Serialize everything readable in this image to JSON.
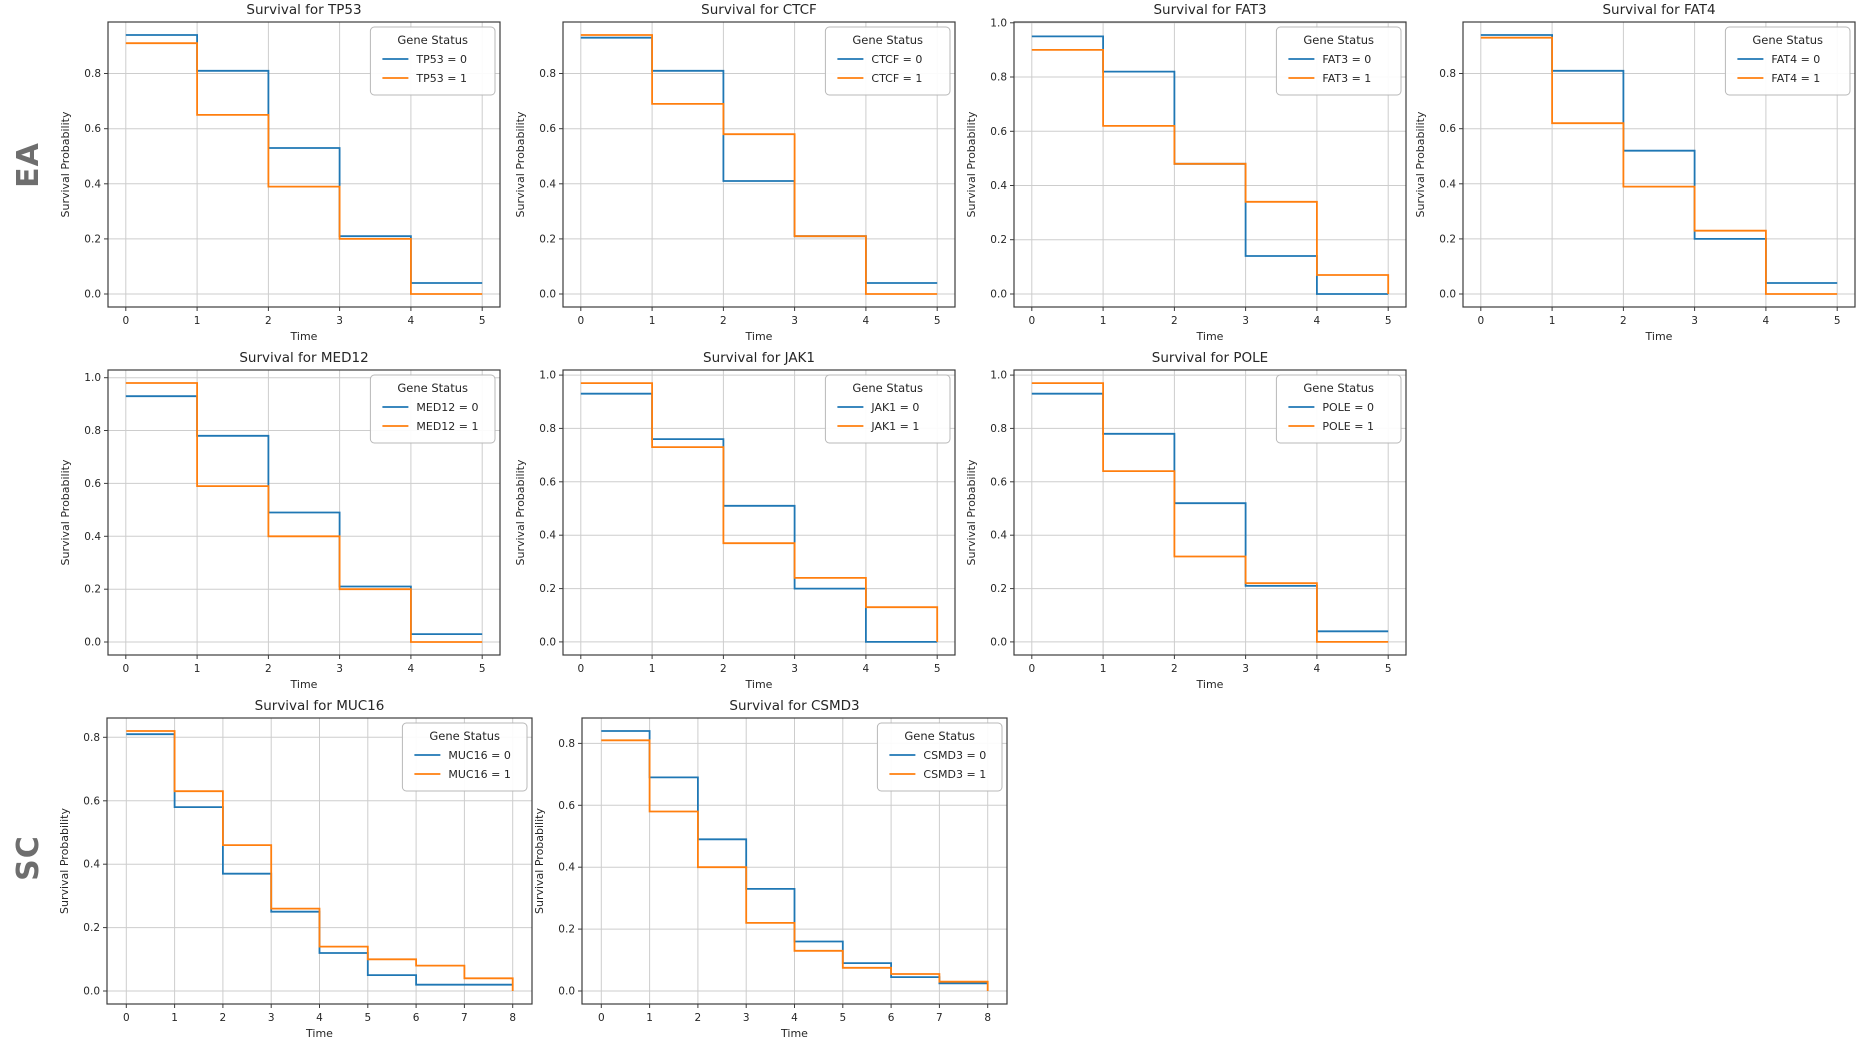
{
  "row_labels": [
    {
      "label": "EA"
    },
    {
      "label": "SC"
    }
  ],
  "colors": {
    "series0": "#1f77b4",
    "series1": "#ff7f0e",
    "grid": "#cdcdcd",
    "spine": "#3c3c3c",
    "text": "#262626",
    "row_label": "#6e6e6e",
    "legend_border": "#b8b8b8"
  },
  "chart_data": [
    {
      "id": "tp53",
      "type": "line",
      "step": true,
      "title": "Survival for TP53",
      "xlabel": "Time",
      "ylabel": "Survival Probability",
      "legend_title": "Gene Status",
      "legend_position": "upper right",
      "grid": true,
      "x": [
        0,
        1,
        2,
        3,
        4,
        5
      ],
      "xticks": [
        0,
        1,
        2,
        3,
        4,
        5
      ],
      "xlim": [
        -0.25,
        5.25
      ],
      "yticks": [
        0.0,
        0.2,
        0.4,
        0.6,
        0.8
      ],
      "ylim": [
        -0.047,
        0.987
      ],
      "series": [
        {
          "name": "TP53 = 0",
          "color": "#1f77b4",
          "values": [
            0.94,
            0.81,
            0.53,
            0.21,
            0.04
          ],
          "end_drop": false
        },
        {
          "name": "TP53 = 1",
          "color": "#ff7f0e",
          "values": [
            0.91,
            0.65,
            0.39,
            0.2,
            0.0
          ],
          "end_drop": false
        }
      ]
    },
    {
      "id": "ctcf",
      "type": "line",
      "step": true,
      "title": "Survival for CTCF",
      "xlabel": "Time",
      "ylabel": "Survival Probability",
      "legend_title": "Gene Status",
      "legend_position": "upper right",
      "grid": true,
      "x": [
        0,
        1,
        2,
        3,
        4,
        5
      ],
      "xticks": [
        0,
        1,
        2,
        3,
        4,
        5
      ],
      "xlim": [
        -0.25,
        5.25
      ],
      "yticks": [
        0.0,
        0.2,
        0.4,
        0.6,
        0.8
      ],
      "ylim": [
        -0.047,
        0.987
      ],
      "series": [
        {
          "name": "CTCF = 0",
          "color": "#1f77b4",
          "values": [
            0.93,
            0.81,
            0.41,
            0.21,
            0.04
          ],
          "end_drop": false
        },
        {
          "name": "CTCF = 1",
          "color": "#ff7f0e",
          "values": [
            0.94,
            0.69,
            0.58,
            0.21,
            0.0
          ],
          "end_drop": false
        }
      ]
    },
    {
      "id": "fat3",
      "type": "line",
      "step": true,
      "title": "Survival for FAT3",
      "xlabel": "Time",
      "ylabel": "Survival Probability",
      "legend_title": "Gene Status",
      "legend_position": "upper right",
      "grid": true,
      "x": [
        0,
        1,
        2,
        3,
        4,
        5
      ],
      "xticks": [
        0,
        1,
        2,
        3,
        4,
        5
      ],
      "xlim": [
        -0.25,
        5.25
      ],
      "yticks": [
        0.0,
        0.2,
        0.4,
        0.6,
        0.8,
        1.0
      ],
      "ylim": [
        -0.048,
        1.003
      ],
      "series": [
        {
          "name": "FAT3 = 0",
          "color": "#1f77b4",
          "values": [
            0.95,
            0.82,
            0.48,
            0.14,
            0.0
          ],
          "end_drop": false
        },
        {
          "name": "FAT3 = 1",
          "color": "#ff7f0e",
          "values": [
            0.9,
            0.62,
            0.48,
            0.34,
            0.07
          ],
          "end_drop": true
        }
      ]
    },
    {
      "id": "fat4",
      "type": "line",
      "step": true,
      "title": "Survival for FAT4",
      "xlabel": "Time",
      "ylabel": "Survival Probability",
      "legend_title": "Gene Status",
      "legend_position": "upper right",
      "grid": true,
      "x": [
        0,
        1,
        2,
        3,
        4,
        5
      ],
      "xticks": [
        0,
        1,
        2,
        3,
        4,
        5
      ],
      "xlim": [
        -0.25,
        5.25
      ],
      "yticks": [
        0.0,
        0.2,
        0.4,
        0.6,
        0.8
      ],
      "ylim": [
        -0.047,
        0.987
      ],
      "series": [
        {
          "name": "FAT4 = 0",
          "color": "#1f77b4",
          "values": [
            0.94,
            0.81,
            0.52,
            0.2,
            0.04
          ],
          "end_drop": false
        },
        {
          "name": "FAT4 = 1",
          "color": "#ff7f0e",
          "values": [
            0.93,
            0.62,
            0.39,
            0.23,
            0.0
          ],
          "end_drop": false
        }
      ]
    },
    {
      "id": "med12",
      "type": "line",
      "step": true,
      "title": "Survival for MED12",
      "xlabel": "Time",
      "ylabel": "Survival Probability",
      "legend_title": "Gene Status",
      "legend_position": "upper right",
      "grid": true,
      "x": [
        0,
        1,
        2,
        3,
        4,
        5
      ],
      "xticks": [
        0,
        1,
        2,
        3,
        4,
        5
      ],
      "xlim": [
        -0.25,
        5.25
      ],
      "yticks": [
        0.0,
        0.2,
        0.4,
        0.6,
        0.8,
        1.0
      ],
      "ylim": [
        -0.049,
        1.029
      ],
      "series": [
        {
          "name": "MED12 = 0",
          "color": "#1f77b4",
          "values": [
            0.93,
            0.78,
            0.49,
            0.21,
            0.03
          ],
          "end_drop": false
        },
        {
          "name": "MED12 = 1",
          "color": "#ff7f0e",
          "values": [
            0.98,
            0.59,
            0.4,
            0.2,
            0.0
          ],
          "end_drop": false
        }
      ]
    },
    {
      "id": "jak1",
      "type": "line",
      "step": true,
      "title": "Survival for JAK1",
      "xlabel": "Time",
      "ylabel": "Survival Probability",
      "legend_title": "Gene Status",
      "legend_position": "upper right",
      "grid": true,
      "x": [
        0,
        1,
        2,
        3,
        4,
        5
      ],
      "xticks": [
        0,
        1,
        2,
        3,
        4,
        5
      ],
      "xlim": [
        -0.25,
        5.25
      ],
      "yticks": [
        0.0,
        0.2,
        0.4,
        0.6,
        0.8,
        1.0
      ],
      "ylim": [
        -0.049,
        1.019
      ],
      "series": [
        {
          "name": "JAK1 = 0",
          "color": "#1f77b4",
          "values": [
            0.93,
            0.76,
            0.51,
            0.2,
            0.0
          ],
          "end_drop": false
        },
        {
          "name": "JAK1 = 1",
          "color": "#ff7f0e",
          "values": [
            0.97,
            0.73,
            0.37,
            0.24,
            0.13
          ],
          "end_drop": true
        }
      ]
    },
    {
      "id": "pole",
      "type": "line",
      "step": true,
      "title": "Survival for POLE",
      "xlabel": "Time",
      "ylabel": "Survival Probability",
      "legend_title": "Gene Status",
      "legend_position": "upper right",
      "grid": true,
      "x": [
        0,
        1,
        2,
        3,
        4,
        5
      ],
      "xticks": [
        0,
        1,
        2,
        3,
        4,
        5
      ],
      "xlim": [
        -0.25,
        5.25
      ],
      "yticks": [
        0.0,
        0.2,
        0.4,
        0.6,
        0.8,
        1.0
      ],
      "ylim": [
        -0.049,
        1.019
      ],
      "series": [
        {
          "name": "POLE = 0",
          "color": "#1f77b4",
          "values": [
            0.93,
            0.78,
            0.52,
            0.21,
            0.04
          ],
          "end_drop": false
        },
        {
          "name": "POLE = 1",
          "color": "#ff7f0e",
          "values": [
            0.97,
            0.64,
            0.32,
            0.22,
            0.0
          ],
          "end_drop": false
        }
      ]
    },
    {
      "id": "muc16",
      "type": "line",
      "step": true,
      "title": "Survival for MUC16",
      "xlabel": "Time",
      "ylabel": "Survival Probability",
      "legend_title": "Gene Status",
      "legend_position": "upper right",
      "grid": true,
      "x": [
        0,
        1,
        2,
        3,
        4,
        5,
        6,
        7,
        8
      ],
      "xticks": [
        0,
        1,
        2,
        3,
        4,
        5,
        6,
        7,
        8
      ],
      "xlim": [
        -0.4,
        8.4
      ],
      "yticks": [
        0.0,
        0.2,
        0.4,
        0.6,
        0.8
      ],
      "ylim": [
        -0.041,
        0.861
      ],
      "series": [
        {
          "name": "MUC16 = 0",
          "color": "#1f77b4",
          "values": [
            0.81,
            0.58,
            0.37,
            0.25,
            0.12,
            0.05,
            0.02,
            0.02
          ],
          "end_drop": false
        },
        {
          "name": "MUC16 = 1",
          "color": "#ff7f0e",
          "values": [
            0.82,
            0.63,
            0.46,
            0.26,
            0.14,
            0.1,
            0.08,
            0.04
          ],
          "end_drop": true
        }
      ]
    },
    {
      "id": "csmd3",
      "type": "line",
      "step": true,
      "title": "Survival for CSMD3",
      "xlabel": "Time",
      "ylabel": "Survival Probability",
      "legend_title": "Gene Status",
      "legend_position": "upper right",
      "grid": true,
      "x": [
        0,
        1,
        2,
        3,
        4,
        5,
        6,
        7,
        8
      ],
      "xticks": [
        0,
        1,
        2,
        3,
        4,
        5,
        6,
        7,
        8
      ],
      "xlim": [
        -0.4,
        8.4
      ],
      "yticks": [
        0.0,
        0.2,
        0.4,
        0.6,
        0.8
      ],
      "ylim": [
        -0.042,
        0.882
      ],
      "series": [
        {
          "name": "CSMD3 = 0",
          "color": "#1f77b4",
          "values": [
            0.84,
            0.69,
            0.49,
            0.33,
            0.16,
            0.09,
            0.045,
            0.025
          ],
          "end_drop": false
        },
        {
          "name": "CSMD3 = 1",
          "color": "#ff7f0e",
          "values": [
            0.81,
            0.58,
            0.4,
            0.22,
            0.13,
            0.075,
            0.055,
            0.03
          ],
          "end_drop": true
        }
      ]
    }
  ]
}
